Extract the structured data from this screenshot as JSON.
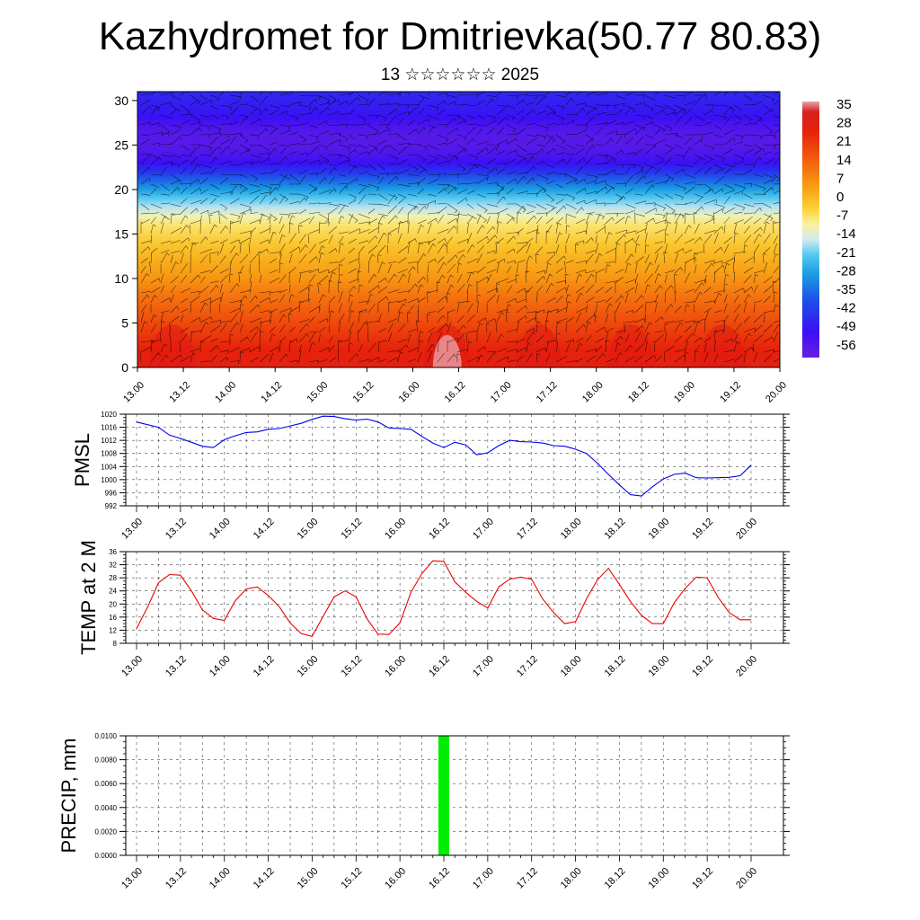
{
  "header": {
    "title": "Kazhydromet for Dmitrievka(50.77 80.83)",
    "subtitle": "13 ☆☆☆☆☆☆ 2025"
  },
  "time_labels": [
    "13.00",
    "13.12",
    "14.00",
    "14.12",
    "15.00",
    "15.12",
    "16.00",
    "16.12",
    "17.00",
    "17.12",
    "18.00",
    "18.12",
    "19.00",
    "19.12",
    "20.00"
  ],
  "chart_data": [
    {
      "type": "heatmap",
      "name": "cross-section",
      "x": [
        "13.00",
        "13.12",
        "14.00",
        "14.12",
        "15.00",
        "15.12",
        "16.00",
        "16.12",
        "17.00",
        "17.12",
        "18.00",
        "18.12",
        "19.00",
        "19.12",
        "20.00"
      ],
      "y_ticks": [
        0,
        5,
        10,
        15,
        20,
        25,
        30
      ],
      "ylim": [
        0,
        31
      ],
      "colorbar": {
        "labels": [
          "35",
          "28",
          "21",
          "14",
          "7",
          "0",
          "-7",
          "-14",
          "-21",
          "-28",
          "-35",
          "-42",
          "-49",
          "-56"
        ],
        "range": [
          -60,
          38
        ]
      },
      "temperature_profile": {
        "heights": [
          0,
          2,
          4,
          6,
          8,
          10,
          12,
          14,
          16,
          17,
          18,
          19,
          20,
          21,
          22,
          23,
          24,
          25,
          26,
          27,
          28,
          29,
          30,
          31
        ],
        "values": [
          26,
          24,
          20,
          16,
          12,
          7,
          3,
          -2,
          -8,
          -14,
          -22,
          -30,
          -38,
          -45,
          -51,
          -55,
          -57,
          -58,
          -58,
          -57,
          -55,
          -54,
          -53,
          -52
        ]
      },
      "grid": false
    },
    {
      "type": "line",
      "name": "PMSL",
      "ylabel": "PMSL",
      "x": [
        "13.00",
        "13.03",
        "13.06",
        "13.09",
        "13.12",
        "13.15",
        "13.18",
        "13.21",
        "14.00",
        "14.03",
        "14.06",
        "14.09",
        "14.12",
        "14.15",
        "14.18",
        "14.21",
        "15.00",
        "15.03",
        "15.06",
        "15.09",
        "15.12",
        "15.15",
        "15.18",
        "15.21",
        "16.00",
        "16.03",
        "16.06",
        "16.09",
        "16.12",
        "16.15",
        "16.18",
        "16.21",
        "17.00",
        "17.03",
        "17.06",
        "17.09",
        "17.12",
        "17.15",
        "17.18",
        "17.21",
        "18.00",
        "18.03",
        "18.06",
        "18.09",
        "18.12",
        "18.15",
        "18.18",
        "18.21",
        "19.00",
        "19.03",
        "19.06",
        "19.09",
        "19.12",
        "19.15",
        "19.18",
        "19.21",
        "20.00"
      ],
      "values": [
        1017.6,
        1016.8,
        1016,
        1013.6,
        1012.6,
        1011.4,
        1010.2,
        1009.8,
        1012.2,
        1013.4,
        1014.4,
        1014.6,
        1015.4,
        1015.6,
        1016.4,
        1017.2,
        1018.4,
        1019.4,
        1019.3,
        1018.6,
        1018.2,
        1018.5,
        1017.6,
        1015.8,
        1015.6,
        1015.4,
        1013.2,
        1011.2,
        1009.8,
        1011.4,
        1010.6,
        1007.6,
        1008.2,
        1010.4,
        1012,
        1011.6,
        1011.5,
        1011.2,
        1010.4,
        1010.2,
        1009.3,
        1008,
        1005,
        1001.6,
        998.4,
        995.4,
        995,
        997.8,
        1000.2,
        1001.6,
        1002,
        1000.6,
        1000.5,
        1000.6,
        1000.7,
        1001.2,
        1004.4
      ],
      "ylim": [
        992,
        1020
      ],
      "yticks": [
        "992",
        "996",
        "1000",
        "1004",
        "1008",
        "1012",
        "1016",
        "1020"
      ],
      "color": "#0000ee"
    },
    {
      "type": "line",
      "name": "TEMP at 2 M",
      "ylabel": "TEMP at 2 M",
      "x": [
        "13.00",
        "13.03",
        "13.06",
        "13.09",
        "13.12",
        "13.15",
        "13.18",
        "13.21",
        "14.00",
        "14.03",
        "14.06",
        "14.09",
        "14.12",
        "14.15",
        "14.18",
        "14.21",
        "15.00",
        "15.03",
        "15.06",
        "15.09",
        "15.12",
        "15.15",
        "15.18",
        "15.21",
        "16.00",
        "16.03",
        "16.06",
        "16.09",
        "16.12",
        "16.15",
        "16.18",
        "16.21",
        "17.00",
        "17.03",
        "17.06",
        "17.09",
        "17.12",
        "17.15",
        "17.18",
        "17.21",
        "18.00",
        "18.03",
        "18.06",
        "18.09",
        "18.12",
        "18.15",
        "18.18",
        "18.21",
        "19.00",
        "19.03",
        "19.06",
        "19.09",
        "19.12",
        "19.15",
        "19.18",
        "19.21",
        "20.00"
      ],
      "values": [
        12.5,
        19,
        26.5,
        29,
        28.8,
        24,
        18.2,
        15.6,
        15,
        21,
        24.6,
        25.2,
        22.6,
        19.2,
        14.2,
        11,
        10.1,
        16.2,
        22.2,
        24,
        22.2,
        15.5,
        10.8,
        10.7,
        14.2,
        23.6,
        29.3,
        33.2,
        33,
        26.8,
        23.6,
        20.8,
        18.8,
        25.2,
        27.6,
        28.2,
        27.6,
        21.6,
        17.4,
        14,
        14.6,
        21.6,
        27.4,
        30.9,
        26,
        20.8,
        16.6,
        14,
        14,
        20.4,
        24.8,
        28.2,
        28,
        22,
        17.4,
        15.2,
        15.2
      ],
      "ylim": [
        8,
        36
      ],
      "yticks": [
        "8",
        "12",
        "16",
        "20",
        "24",
        "28",
        "32",
        "36"
      ],
      "color": "#ee0000"
    },
    {
      "type": "bar",
      "name": "PRECIP",
      "ylabel": "PRECIP, mm",
      "x": [
        "16.12"
      ],
      "values": [
        0.01
      ],
      "ylim": [
        0,
        0.01
      ],
      "yticks": [
        "0.0000",
        "0.0020",
        "0.0040",
        "0.0060",
        "0.0080",
        "0.0100"
      ],
      "color": "#00ee00"
    }
  ]
}
